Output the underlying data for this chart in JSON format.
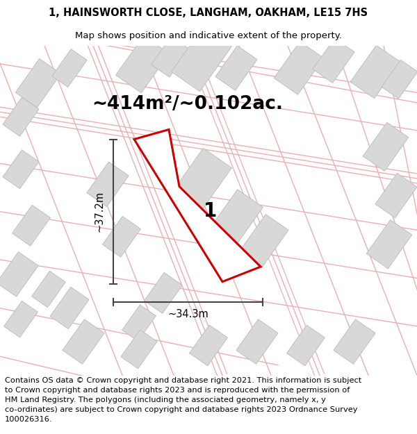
{
  "title_line1": "1, HAINSWORTH CLOSE, LANGHAM, OAKHAM, LE15 7HS",
  "title_line2": "Map shows position and indicative extent of the property.",
  "area_text": "~414m²/~0.102ac.",
  "label_number": "1",
  "dim_width": "~34.3m",
  "dim_height": "~37.2m",
  "footer_text": "Contains OS data © Crown copyright and database right 2021. This information is subject\nto Crown copyright and database rights 2023 and is reproduced with the permission of\nHM Land Registry. The polygons (including the associated geometry, namely x, y\nco-ordinates) are subject to Crown copyright and database rights 2023 Ordnance Survey\n100026316.",
  "map_bg": "#f7f4f4",
  "road_outline_color": "#e8b0b0",
  "road_fill_color": "#f7f4f4",
  "building_fill": "#d8d8d8",
  "building_stroke": "#c0c0c0",
  "plot_fill": "#ffffff",
  "plot_stroke": "#cc0000",
  "title_fontsize": 10.5,
  "subtitle_fontsize": 9.5,
  "area_fontsize": 19,
  "label_fontsize": 20,
  "dim_fontsize": 10.5,
  "footer_fontsize": 8.2
}
